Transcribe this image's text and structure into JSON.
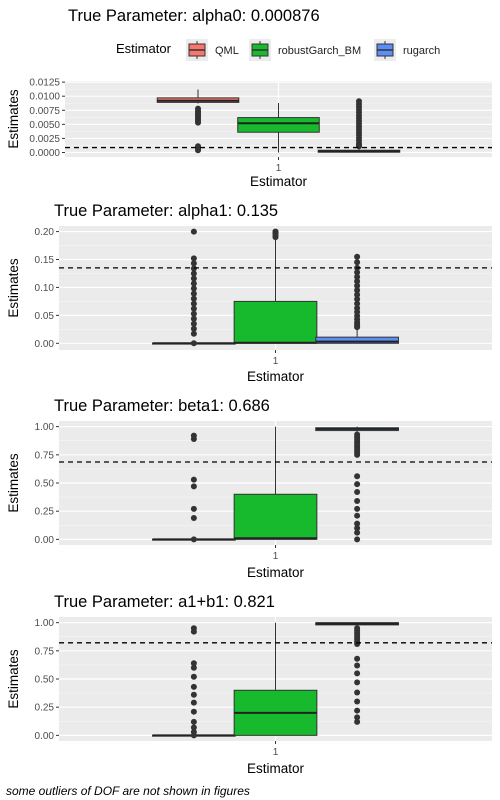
{
  "legend": {
    "title": "Estimator",
    "items": [
      {
        "label": "QML",
        "color": "#F8766D"
      },
      {
        "label": "robustGarch_BM",
        "color": "#17BA2C"
      },
      {
        "label": "rugarch",
        "color": "#5B8DF6"
      }
    ]
  },
  "footnote": "some outliers of DOF are not shown in figures",
  "chart_data": [
    {
      "type": "boxplot",
      "title": "True Parameter: alpha0: 0.000876",
      "xlabel": "Estimator",
      "ylabel": "Estimates",
      "x_tick": "1",
      "ylim": [
        -0.0008,
        0.0127
      ],
      "yticks": [
        0.0,
        0.0025,
        0.005,
        0.0075,
        0.01,
        0.0125
      ],
      "ytick_labels": [
        "0.0000",
        "0.0025",
        "0.0050",
        "0.0075",
        "0.0100",
        "0.0125"
      ],
      "reference_line": 0.000876,
      "boxes": [
        {
          "name": "QML",
          "whisker_low": 0.0087,
          "q1": 0.0089,
          "median": 0.0092,
          "q3": 0.0097,
          "whisker_high": 0.0112,
          "outliers": [
            0.0078,
            0.0074,
            0.0071,
            0.0068,
            0.0065,
            0.0062,
            0.0059,
            0.0056,
            0.0053,
            0.0011,
            0.0007,
            0.0004
          ]
        },
        {
          "name": "robustGarch_BM",
          "whisker_low": 0.0,
          "q1": 0.0036,
          "median": 0.0052,
          "q3": 0.0062,
          "whisker_high": 0.0088,
          "outliers": []
        },
        {
          "name": "rugarch",
          "whisker_low": 0.0,
          "q1": 5e-05,
          "median": 0.0002,
          "q3": 0.0004,
          "whisker_high": 0.0009,
          "outliers": [
            0.0091,
            0.0086,
            0.0081,
            0.0076,
            0.0071,
            0.0066,
            0.0061,
            0.0056,
            0.0051,
            0.0046,
            0.0041,
            0.0036,
            0.0031,
            0.0026,
            0.0021,
            0.0016,
            0.0013,
            0.0011
          ]
        }
      ]
    },
    {
      "type": "boxplot",
      "title": "True Parameter: alpha1: 0.135",
      "xlabel": "Estimator",
      "ylabel": "Estimates",
      "x_tick": "1",
      "ylim": [
        -0.012,
        0.21
      ],
      "yticks": [
        0.0,
        0.05,
        0.1,
        0.15,
        0.2
      ],
      "ytick_labels": [
        "0.00",
        "0.05",
        "0.10",
        "0.15",
        "0.20"
      ],
      "reference_line": 0.135,
      "boxes": [
        {
          "name": "QML",
          "whisker_low": 0.0,
          "q1": 0.0,
          "median": 0.0,
          "q3": 0.0,
          "whisker_high": 0.0,
          "outliers": [
            0.2,
            0.152,
            0.143,
            0.134,
            0.125,
            0.116,
            0.107,
            0.098,
            0.089,
            0.08,
            0.071,
            0.062,
            0.053,
            0.044,
            0.035,
            0.026,
            0.017,
            0.0
          ]
        },
        {
          "name": "robustGarch_BM",
          "whisker_low": 0.0,
          "q1": 0.0,
          "median": 0.001,
          "q3": 0.075,
          "whisker_high": 0.185,
          "outliers": [
            0.19,
            0.193,
            0.196,
            0.199,
            0.2,
            0.2
          ]
        },
        {
          "name": "rugarch",
          "whisker_low": 0.0,
          "q1": 0.0,
          "median": 0.003,
          "q3": 0.011,
          "whisker_high": 0.027,
          "outliers": [
            0.155,
            0.145,
            0.135,
            0.127,
            0.119,
            0.111,
            0.103,
            0.095,
            0.087,
            0.079,
            0.071,
            0.063,
            0.056,
            0.049,
            0.043,
            0.038,
            0.034,
            0.031,
            0.029
          ]
        }
      ]
    },
    {
      "type": "boxplot",
      "title": "True Parameter: beta1: 0.686",
      "xlabel": "Estimator",
      "ylabel": "Estimates",
      "x_tick": "1",
      "ylim": [
        -0.05,
        1.05
      ],
      "yticks": [
        0.0,
        0.25,
        0.5,
        0.75,
        1.0
      ],
      "ytick_labels": [
        "0.00",
        "0.25",
        "0.50",
        "0.75",
        "1.00"
      ],
      "reference_line": 0.686,
      "boxes": [
        {
          "name": "QML",
          "whisker_low": 0.0,
          "q1": 0.0,
          "median": 0.0,
          "q3": 0.0,
          "whisker_high": 0.0,
          "outliers": [
            0.92,
            0.89,
            0.53,
            0.47,
            0.27,
            0.19,
            0.0
          ]
        },
        {
          "name": "robustGarch_BM",
          "whisker_low": 0.0,
          "q1": 0.0,
          "median": 0.01,
          "q3": 0.4,
          "whisker_high": 1.0,
          "outliers": []
        },
        {
          "name": "rugarch",
          "whisker_low": 0.94,
          "q1": 0.965,
          "median": 0.98,
          "q3": 0.99,
          "whisker_high": 1.0,
          "outliers": [
            0.93,
            0.91,
            0.89,
            0.87,
            0.85,
            0.83,
            0.81,
            0.79,
            0.77,
            0.75,
            0.56,
            0.49,
            0.42,
            0.34,
            0.27,
            0.21,
            0.14,
            0.1,
            0.06,
            0.0
          ]
        }
      ]
    },
    {
      "type": "boxplot",
      "title": "True Parameter: a1+b1: 0.821",
      "xlabel": "Estimator",
      "ylabel": "Estimates",
      "x_tick": "1",
      "ylim": [
        -0.05,
        1.05
      ],
      "yticks": [
        0.0,
        0.25,
        0.5,
        0.75,
        1.0
      ],
      "ytick_labels": [
        "0.00",
        "0.25",
        "0.50",
        "0.75",
        "1.00"
      ],
      "reference_line": 0.821,
      "boxes": [
        {
          "name": "QML",
          "whisker_low": 0.0,
          "q1": 0.0,
          "median": 0.0,
          "q3": 0.0,
          "whisker_high": 0.0,
          "outliers": [
            0.95,
            0.92,
            0.64,
            0.6,
            0.52,
            0.43,
            0.36,
            0.29,
            0.21,
            0.12,
            0.07,
            0.03,
            0.0
          ]
        },
        {
          "name": "robustGarch_BM",
          "whisker_low": 0.0,
          "q1": 0.0,
          "median": 0.2,
          "q3": 0.4,
          "whisker_high": 1.0,
          "outliers": []
        },
        {
          "name": "rugarch",
          "whisker_low": 0.96,
          "q1": 0.98,
          "median": 0.99,
          "q3": 1.0,
          "whisker_high": 1.0,
          "outliers": [
            0.95,
            0.93,
            0.91,
            0.89,
            0.87,
            0.85,
            0.83,
            0.81,
            0.68,
            0.62,
            0.55,
            0.47,
            0.38,
            0.3,
            0.22,
            0.16,
            0.12
          ]
        }
      ]
    }
  ]
}
